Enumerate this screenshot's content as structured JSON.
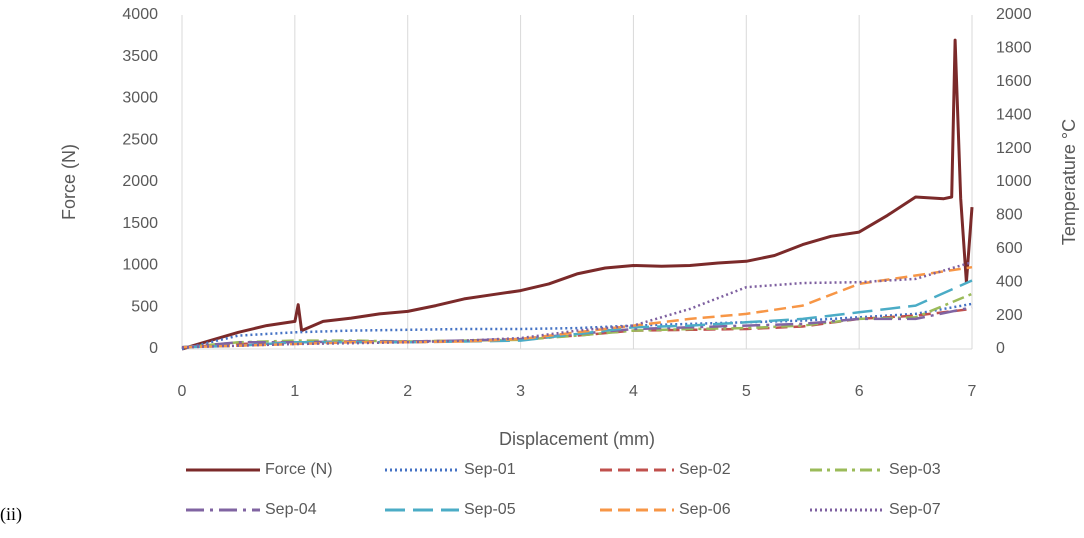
{
  "chart_data": {
    "type": "line",
    "caption": "(ii)",
    "x_label": "Displacement (mm)",
    "y_label": "Force (N)",
    "y2_label": "Temperature °C",
    "xlim": [
      0,
      7
    ],
    "xticks": [
      0,
      1,
      2,
      3,
      4,
      5,
      6,
      7
    ],
    "ylim": [
      0,
      4000
    ],
    "yticks": [
      0,
      500,
      1000,
      1500,
      2000,
      2500,
      3000,
      3500,
      4000
    ],
    "y2lim": [
      0,
      2000
    ],
    "y2ticks": [
      0,
      200,
      400,
      600,
      800,
      1000,
      1200,
      1400,
      1600,
      1800,
      2000
    ],
    "grid": "x",
    "legend": "bottom",
    "x": [
      0,
      0.5,
      1,
      1.5,
      2,
      2.5,
      3,
      3.5,
      4,
      4.5,
      5,
      5.5,
      6,
      6.5,
      7
    ],
    "series": [
      {
        "name": "Force (N)",
        "color": "#7b2a2a",
        "style": "solid",
        "x": [
          0,
          0.25,
          0.5,
          0.75,
          1,
          1.03,
          1.06,
          1.25,
          1.5,
          1.75,
          2,
          2.25,
          2.5,
          2.75,
          3,
          3.25,
          3.5,
          3.75,
          4,
          4.25,
          4.5,
          4.75,
          5,
          5.25,
          5.5,
          5.75,
          6,
          6.25,
          6.5,
          6.75,
          6.82,
          6.85,
          6.9,
          6.95,
          7
        ],
        "values": [
          0,
          100,
          200,
          280,
          330,
          530,
          220,
          330,
          370,
          420,
          450,
          520,
          600,
          650,
          700,
          780,
          900,
          970,
          1000,
          990,
          1000,
          1030,
          1050,
          1120,
          1250,
          1350,
          1400,
          1600,
          1820,
          1800,
          1820,
          3700,
          1800,
          800,
          1700
        ]
      },
      {
        "name": "Sep-01",
        "color": "#4472c4",
        "style": "dotted",
        "axis": "y2",
        "values": [
          0,
          80,
          100,
          110,
          115,
          120,
          120,
          125,
          140,
          150,
          160,
          170,
          190,
          210,
          270
        ]
      },
      {
        "name": "Sep-02",
        "color": "#c0504d",
        "style": "dashed",
        "axis": "y2",
        "values": [
          10,
          30,
          40,
          45,
          45,
          50,
          60,
          80,
          110,
          115,
          120,
          135,
          180,
          200,
          240
        ]
      },
      {
        "name": "Sep-03",
        "color": "#9bbb59",
        "style": "dash-dot",
        "axis": "y2",
        "values": [
          10,
          40,
          50,
          50,
          45,
          50,
          55,
          80,
          110,
          120,
          125,
          140,
          180,
          190,
          330
        ]
      },
      {
        "name": "Sep-04",
        "color": "#8064a2",
        "style": "long-dash-dot",
        "axis": "y2",
        "values": [
          10,
          40,
          40,
          45,
          45,
          50,
          60,
          90,
          120,
          130,
          140,
          150,
          180,
          180,
          250
        ]
      },
      {
        "name": "Sep-05",
        "color": "#4bacc6",
        "style": "long-dash",
        "axis": "y2",
        "values": [
          10,
          20,
          40,
          40,
          40,
          45,
          50,
          90,
          130,
          140,
          160,
          180,
          220,
          260,
          410
        ]
      },
      {
        "name": "Sep-06",
        "color": "#f79646",
        "style": "dashed",
        "axis": "y2",
        "values": [
          10,
          20,
          30,
          40,
          40,
          45,
          60,
          100,
          140,
          180,
          210,
          260,
          390,
          440,
          490
        ]
      },
      {
        "name": "Sep-07",
        "color": "#7e60a0",
        "style": "dotted",
        "axis": "y2",
        "values": [
          10,
          20,
          30,
          35,
          40,
          50,
          65,
          110,
          140,
          240,
          370,
          395,
          400,
          420,
          520
        ]
      }
    ]
  }
}
